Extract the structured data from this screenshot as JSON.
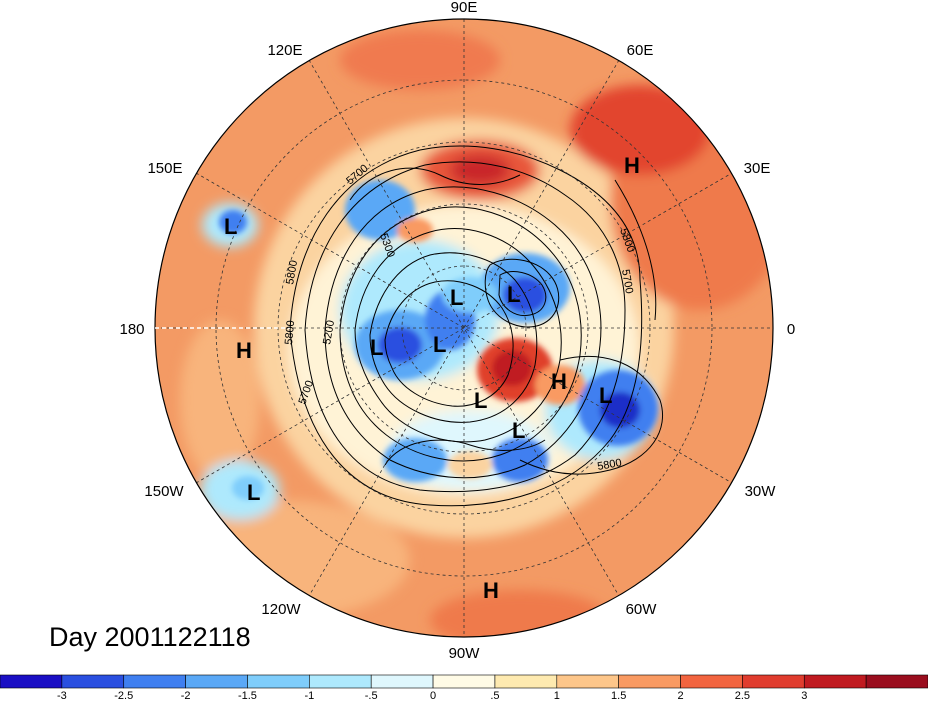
{
  "title": "Day 2001122118",
  "longitude_labels": {
    "top": "90E",
    "upper_left": "120E",
    "upper_right": "60E",
    "mid_left": "150E",
    "mid_right": "30E",
    "left": "180",
    "right": "0",
    "lower_left": "150W",
    "lower_right": "30W",
    "bottom_left": "120W",
    "bottom_right": "60W",
    "bottom": "90W"
  },
  "pressure_centers": [
    {
      "label": "L"
    },
    {
      "label": "L"
    },
    {
      "label": "L"
    },
    {
      "label": "L"
    },
    {
      "label": "L"
    },
    {
      "label": "L"
    },
    {
      "label": "L"
    },
    {
      "label": "L"
    },
    {
      "label": "L"
    },
    {
      "label": "H"
    },
    {
      "label": "H"
    },
    {
      "label": "H"
    },
    {
      "label": "H"
    }
  ],
  "contour_labels": [
    "5700",
    "5300",
    "5800",
    "5200",
    "5800",
    "5700",
    "5800",
    "5700",
    "5800"
  ],
  "colorbar": {
    "colors": [
      "#1a0fc4",
      "#2a4fe0",
      "#3f7ff0",
      "#5aa8f6",
      "#7fcdfb",
      "#aee9fd",
      "#dff7fd",
      "#fffbe6",
      "#feeab0",
      "#fdc68a",
      "#f99a62",
      "#f2643f",
      "#e03c2e",
      "#c01a20",
      "#9a0d1e"
    ],
    "tick_labels": [
      "-3",
      "-2.5",
      "-2",
      "-1.5",
      "-1",
      "-.5",
      "0",
      ".5",
      "1",
      "1.5",
      "2",
      "2.5",
      "3"
    ]
  },
  "palette": {
    "background_warm": "#f6a36e",
    "ring_mid": "#fbd3a0",
    "cold_blue": "#3f7ff0",
    "deep_blue": "#1a2fc8",
    "warm_red": "#e0402c"
  }
}
